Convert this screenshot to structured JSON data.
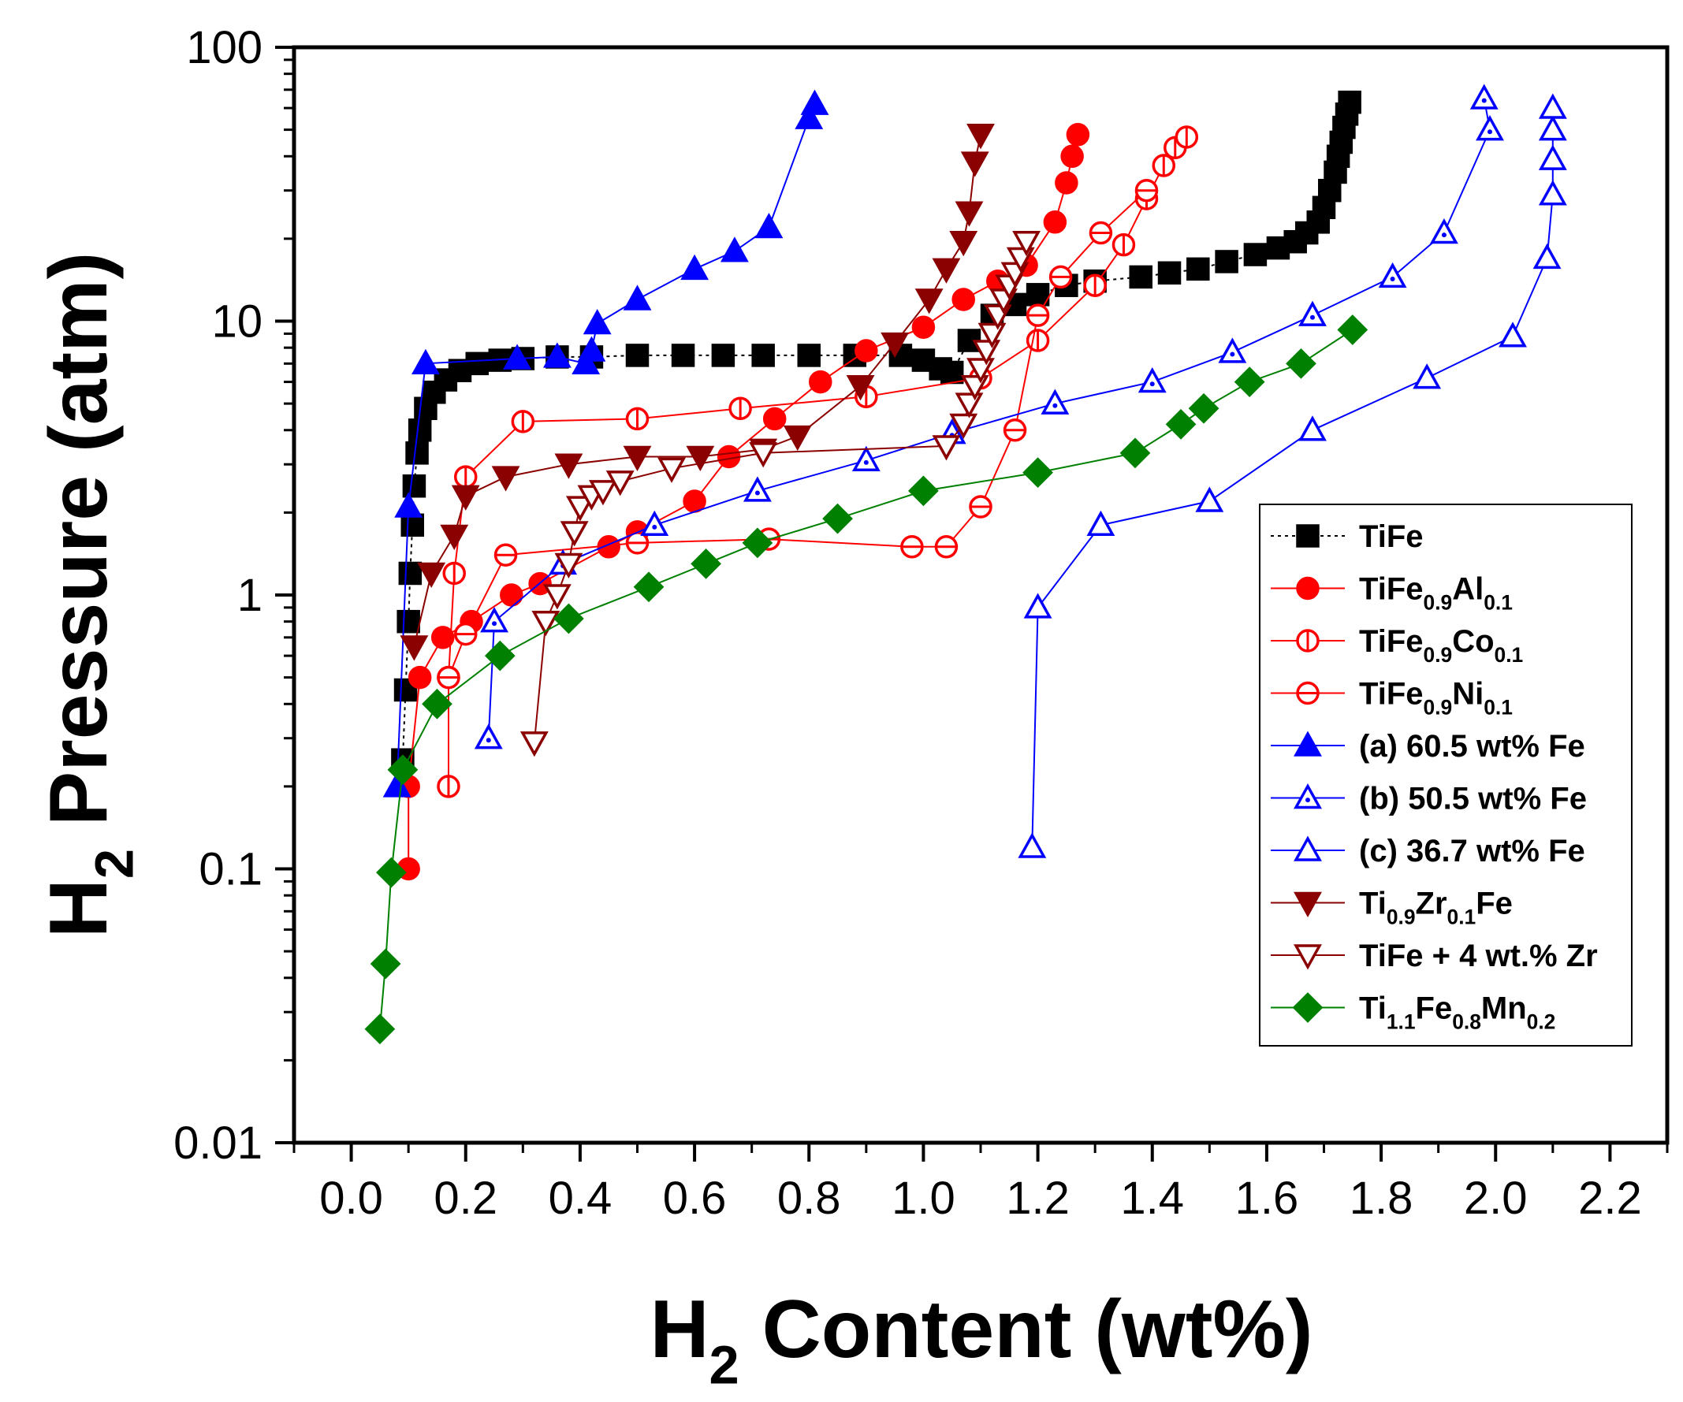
{
  "chart_data": {
    "type": "scatter",
    "title": "",
    "xlabel": "H_2 Content (wt%)",
    "ylabel": "H_2 Pressure (atm)",
    "xlabel_parts": [
      [
        "H",
        ""
      ],
      [
        "2",
        "sub"
      ],
      [
        " Content (wt%)",
        ""
      ]
    ],
    "ylabel_parts": [
      [
        "H",
        ""
      ],
      [
        "2",
        "sub"
      ],
      [
        " Pressure (atm)",
        ""
      ]
    ],
    "xlim": [
      -0.1,
      2.3
    ],
    "ylim": [
      0.01,
      100
    ],
    "yscale": "log",
    "xticks": [
      0.0,
      0.2,
      0.4,
      0.6,
      0.8,
      1.0,
      1.2,
      1.4,
      1.6,
      1.8,
      2.0,
      2.2
    ],
    "xtick_labels": [
      "0.0",
      "0.2",
      "0.4",
      "0.6",
      "0.8",
      "1.0",
      "1.2",
      "1.4",
      "1.6",
      "1.8",
      "2.0",
      "2.2"
    ],
    "yticks": [
      0.01,
      0.1,
      1,
      10,
      100
    ],
    "ytick_labels": [
      "0.01",
      "0.1",
      "1",
      "10",
      "100"
    ],
    "grid": false,
    "legend_position": "bottom-right",
    "series": [
      {
        "name": "TiFe",
        "name_parts": [
          [
            "TiFe",
            ""
          ]
        ],
        "color": "#000000",
        "marker": "square",
        "fill": "filled",
        "dash": "4,5",
        "x": [
          0.09,
          0.095,
          0.1,
          0.103,
          0.107,
          0.11,
          0.115,
          0.12,
          0.13,
          0.145,
          0.165,
          0.19,
          0.22,
          0.26,
          0.3,
          0.36,
          0.42,
          0.5,
          0.58,
          0.65,
          0.72,
          0.8,
          0.88,
          0.96,
          1.0,
          1.03,
          1.05,
          1.08,
          1.12,
          1.16,
          1.2,
          1.25,
          1.3,
          1.38,
          1.43,
          1.48,
          1.53,
          1.58,
          1.62,
          1.65,
          1.67,
          1.69,
          1.7,
          1.71,
          1.72,
          1.725,
          1.73,
          1.735,
          1.74,
          1.745
        ],
        "y": [
          0.25,
          0.45,
          0.8,
          1.2,
          1.8,
          2.5,
          3.3,
          4.0,
          4.8,
          5.5,
          6.1,
          6.6,
          7.0,
          7.2,
          7.3,
          7.4,
          7.4,
          7.5,
          7.5,
          7.5,
          7.5,
          7.5,
          7.5,
          7.5,
          7.2,
          6.7,
          6.5,
          8.5,
          10.5,
          11.5,
          12.5,
          13.5,
          14.0,
          14.5,
          15.0,
          15.5,
          16.5,
          17.5,
          18.5,
          19.5,
          21.0,
          23.0,
          26.0,
          30.0,
          35.0,
          40.0,
          45.0,
          51.0,
          57.0,
          63.0
        ]
      },
      {
        "name": "TiFe0.9Al0.1",
        "name_parts": [
          [
            "TiFe",
            ""
          ],
          [
            "0.9",
            "sub"
          ],
          [
            "Al",
            ""
          ],
          [
            "0.1",
            "sub"
          ]
        ],
        "color": "#ff0000",
        "marker": "circle",
        "fill": "filled",
        "dash": "",
        "x": [
          0.1,
          0.1,
          0.12,
          0.16,
          0.21,
          0.28,
          0.33,
          0.45,
          0.5,
          0.6,
          0.66,
          0.74,
          0.82,
          0.9,
          1.0,
          1.07,
          1.13,
          1.18,
          1.23,
          1.25,
          1.26,
          1.27
        ],
        "y": [
          0.1,
          0.2,
          0.5,
          0.7,
          0.8,
          1.0,
          1.1,
          1.5,
          1.7,
          2.2,
          3.2,
          4.4,
          6.0,
          7.8,
          9.5,
          12.0,
          14.0,
          16.0,
          23.0,
          32.0,
          40.0,
          48.0
        ]
      },
      {
        "name": "TiFe0.9Co0.1",
        "name_parts": [
          [
            "TiFe",
            ""
          ],
          [
            "0.9",
            "sub"
          ],
          [
            "Co",
            ""
          ],
          [
            "0.1",
            "sub"
          ]
        ],
        "color": "#ff0000",
        "marker": "circle",
        "fill": "open-vbar",
        "dash": "",
        "x": [
          0.17,
          0.17,
          0.18,
          0.2,
          0.3,
          0.5,
          0.68,
          0.9,
          1.1,
          1.2,
          1.3,
          1.35,
          1.39,
          1.42,
          1.44,
          1.46
        ],
        "y": [
          0.2,
          0.5,
          1.2,
          2.7,
          4.3,
          4.4,
          4.8,
          5.3,
          6.2,
          8.5,
          13.5,
          19.0,
          28.0,
          37.0,
          43.0,
          47.0
        ]
      },
      {
        "name": "TiFe0.9Ni0.1",
        "name_parts": [
          [
            "TiFe",
            ""
          ],
          [
            "0.9",
            "sub"
          ],
          [
            "Ni",
            ""
          ],
          [
            "0.1",
            "sub"
          ]
        ],
        "color": "#ff0000",
        "marker": "circle",
        "fill": "open-hbar",
        "dash": "",
        "x": [
          0.17,
          0.2,
          0.27,
          0.5,
          0.73,
          0.98,
          1.04,
          1.1,
          1.16,
          1.2,
          1.24,
          1.31,
          1.39
        ],
        "y": [
          0.5,
          0.72,
          1.4,
          1.55,
          1.6,
          1.5,
          1.5,
          2.1,
          4.0,
          10.5,
          14.5,
          21.0,
          30.0
        ]
      },
      {
        "name": "(a) 60.5 wt% Fe",
        "name_parts": [
          [
            "(a) 60.5 wt% Fe",
            ""
          ]
        ],
        "color": "#0000ff",
        "marker": "triangle-up",
        "fill": "filled",
        "dash": "",
        "x": [
          0.08,
          0.1,
          0.13,
          0.29,
          0.36,
          0.41,
          0.42,
          0.43,
          0.5,
          0.6,
          0.67,
          0.73,
          0.8,
          0.81
        ],
        "y": [
          0.2,
          2.1,
          7.0,
          7.3,
          7.4,
          7.0,
          7.8,
          9.8,
          12.0,
          15.5,
          18.0,
          22.0,
          55.0,
          62.0
        ]
      },
      {
        "name": "(b) 50.5 wt% Fe",
        "name_parts": [
          [
            "(b) 50.5 wt% Fe",
            ""
          ]
        ],
        "color": "#0000ff",
        "marker": "triangle-up",
        "fill": "open-dot",
        "dash": "",
        "x": [
          0.24,
          0.25,
          0.37,
          0.53,
          0.71,
          0.9,
          1.05,
          1.23,
          1.4,
          1.54,
          1.68,
          1.82,
          1.91,
          1.99,
          1.98
        ],
        "y": [
          0.3,
          0.8,
          1.3,
          1.8,
          2.4,
          3.1,
          3.9,
          5.0,
          6.0,
          7.7,
          10.5,
          14.5,
          21.0,
          50.0,
          65.0
        ]
      },
      {
        "name": "(c) 36.7 wt% Fe",
        "name_parts": [
          [
            "(c) 36.7 wt% Fe",
            ""
          ]
        ],
        "color": "#0000ff",
        "marker": "triangle-up",
        "fill": "open",
        "dash": "",
        "x": [
          1.19,
          1.2,
          1.31,
          1.5,
          1.68,
          1.88,
          2.03,
          2.09,
          2.1,
          2.1,
          2.1,
          2.1
        ],
        "y": [
          0.12,
          0.9,
          1.8,
          2.2,
          4.0,
          6.2,
          8.8,
          17.0,
          29.0,
          39.0,
          50.0,
          60.0
        ]
      },
      {
        "name": "Ti0.9Zr0.1Fe",
        "name_parts": [
          [
            "Ti",
            ""
          ],
          [
            "0.9",
            "sub"
          ],
          [
            "Zr",
            ""
          ],
          [
            "0.1",
            "sub"
          ],
          [
            "Fe",
            ""
          ]
        ],
        "color": "#8b0000",
        "marker": "triangle-down",
        "fill": "filled",
        "dash": "",
        "x": [
          0.11,
          0.14,
          0.18,
          0.2,
          0.27,
          0.38,
          0.5,
          0.61,
          0.72,
          0.78,
          0.89,
          0.95,
          1.01,
          1.04,
          1.07,
          1.08,
          1.09,
          1.1
        ],
        "y": [
          0.65,
          1.2,
          1.65,
          2.3,
          2.7,
          3.0,
          3.2,
          3.2,
          3.4,
          3.8,
          5.8,
          8.3,
          12.0,
          15.5,
          19.5,
          25.0,
          38.0,
          48.0
        ]
      },
      {
        "name": "TiFe + 4 wt.% Zr",
        "name_parts": [
          [
            "TiFe + 4 wt.% Zr",
            ""
          ]
        ],
        "color": "#8b0000",
        "marker": "triangle-down",
        "fill": "open",
        "dash": "",
        "x": [
          0.32,
          0.34,
          0.36,
          0.38,
          0.39,
          0.4,
          0.42,
          0.44,
          0.47,
          0.56,
          0.72,
          1.04,
          1.07,
          1.08,
          1.09,
          1.1,
          1.11,
          1.12,
          1.13,
          1.14,
          1.15,
          1.16,
          1.17,
          1.18
        ],
        "y": [
          0.29,
          0.8,
          1.0,
          1.3,
          1.7,
          2.1,
          2.3,
          2.4,
          2.6,
          2.9,
          3.3,
          3.5,
          4.2,
          5.0,
          5.8,
          6.7,
          7.8,
          9.0,
          10.5,
          12.0,
          13.5,
          15.0,
          17.0,
          19.5
        ]
      },
      {
        "name": "Ti1.1Fe0.8Mn0.2",
        "name_parts": [
          [
            "Ti",
            ""
          ],
          [
            "1.1",
            "sub"
          ],
          [
            "Fe",
            ""
          ],
          [
            "0.8",
            "sub"
          ],
          [
            "Mn",
            ""
          ],
          [
            "0.2",
            "sub"
          ]
        ],
        "color": "#008000",
        "marker": "diamond",
        "fill": "filled",
        "dash": "",
        "x": [
          0.05,
          0.06,
          0.07,
          0.09,
          0.15,
          0.26,
          0.38,
          0.52,
          0.62,
          0.71,
          0.85,
          1.0,
          1.2,
          1.37,
          1.45,
          1.49,
          1.57,
          1.66,
          1.75
        ],
        "y": [
          0.026,
          0.045,
          0.097,
          0.23,
          0.4,
          0.6,
          0.82,
          1.07,
          1.3,
          1.55,
          1.9,
          2.4,
          2.8,
          3.3,
          4.2,
          4.8,
          6.0,
          7.0,
          9.3
        ]
      }
    ]
  }
}
